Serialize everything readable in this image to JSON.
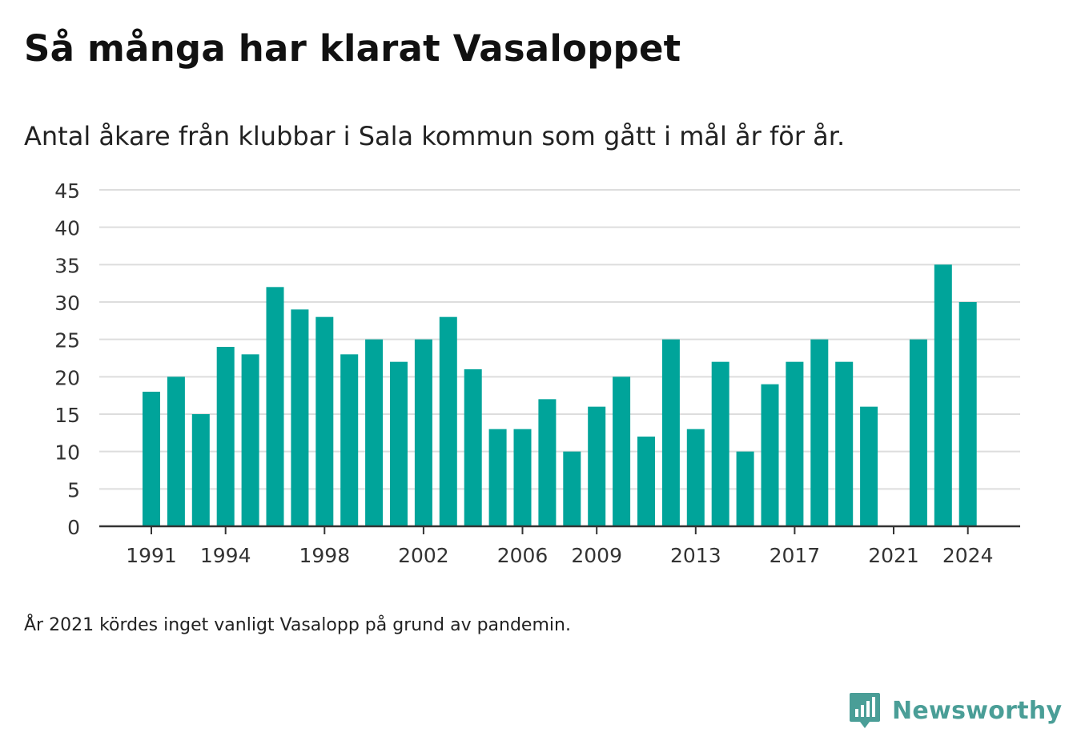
{
  "title": "Så många har klarat Vasaloppet",
  "subtitle": "Antal åkare från klubbar i Sala kommun som gått i mål år för år.",
  "note": "År 2021 kördes inget vanligt Vasalopp på grund av pandemin.",
  "brand": {
    "name": "Newsworthy",
    "icon": "newsworthy-logo-icon",
    "color": "#4a9e97"
  },
  "colors": {
    "bar": "#00a49a",
    "grid": "#dddddd",
    "axis": "#333333",
    "text": "#333333"
  },
  "chart_data": {
    "type": "bar",
    "title": "Så många har klarat Vasaloppet",
    "subtitle": "Antal åkare från klubbar i Sala kommun som gått i mål år för år.",
    "xlabel": "",
    "ylabel": "",
    "ylim": [
      0,
      45
    ],
    "yticks": [
      0,
      5,
      10,
      15,
      20,
      25,
      30,
      35,
      40,
      45
    ],
    "xticks": [
      1991,
      1994,
      1998,
      2002,
      2006,
      2009,
      2013,
      2017,
      2021,
      2024
    ],
    "grid": true,
    "legend": "none",
    "categories": [
      1991,
      1992,
      1993,
      1994,
      1995,
      1996,
      1997,
      1998,
      1999,
      2000,
      2001,
      2002,
      2003,
      2004,
      2005,
      2006,
      2007,
      2008,
      2009,
      2010,
      2011,
      2012,
      2013,
      2014,
      2015,
      2016,
      2017,
      2018,
      2019,
      2020,
      2021,
      2022,
      2023,
      2024
    ],
    "values": [
      18,
      20,
      15,
      24,
      23,
      32,
      29,
      28,
      23,
      25,
      22,
      25,
      28,
      21,
      13,
      13,
      17,
      10,
      16,
      20,
      12,
      25,
      13,
      22,
      10,
      19,
      22,
      25,
      22,
      16,
      null,
      25,
      35,
      30
    ]
  }
}
